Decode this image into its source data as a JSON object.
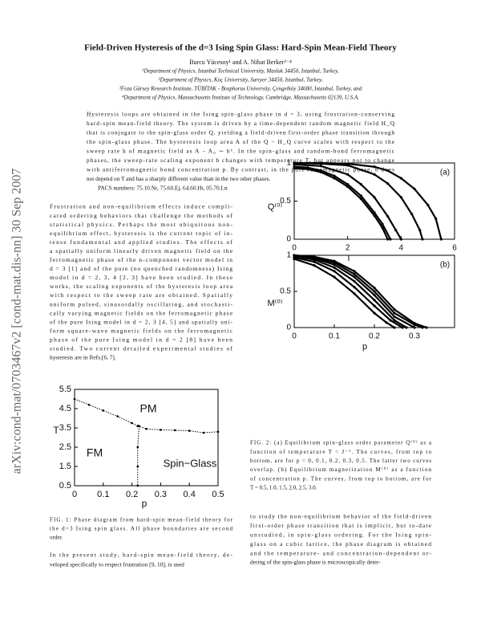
{
  "sidebar": "arXiv:cond-mat/0703467v2  [cond-mat.dis-nn]  30 Sep 2007",
  "header": {
    "title": "Field-Driven Hysteresis of the d=3 Ising Spin Glass: Hard-Spin Mean-Field Theory",
    "authors": "Burcu Yücesoy¹ and A. Nihat Berker²⁻⁴",
    "affiliations": [
      "¹Department of Physics, Istanbul Technical University, Maslak 34450, Istanbul, Turkey,",
      "²Department of Physics, Koç University, Sarıyer 34450, Istanbul, Turkey,",
      "³Feza Gürsey Research Institute, TÜBİTAK - Bosphorus University, Çengelköy 34680, Istanbul, Turkey, and",
      "⁴Department of Physics, Massachusetts Institute of Technology, Cambridge, Massachusetts 02139, U.S.A."
    ]
  },
  "abstract": {
    "lines": [
      "Hysteresis loops are obtained in the Ising spin-glass phase in d = 3, using frustration-conserving",
      "hard-spin mean-field theory. The system is driven by a time-dependent random magnetic field H_Q",
      "that is conjugate to the spin-glass order Q, yielding a field-driven first-order phase transition through",
      "the spin-glass phase.  The hysteresis loop area A of the Q − H_Q curve scales with respect to the",
      "sweep rate h of magnetic field as A − A₀ ∼ hᵇ.  In the spin-glass and random-bond ferromagnetic",
      "phases, the sweep-rate scaling exponent b changes with temperature T, but appears not to change",
      "with antiferromagnetic bond concentration p.  By contrast, in the pure ferromagnetic phase, b does",
      "not depend on T and has a sharply different value than in the two other phases."
    ],
    "pacs": "PACS numbers: 75.10.Nr, 75.60.Ej, 64.60.Ht, 05.70.Ln"
  },
  "body": {
    "left_top": [
      "Frustration and non-equilibrium effects induce compli-",
      "cated ordering behaviors that challenge the methods of",
      "statistical physics.  Perhaps the most ubiquitous non-",
      "equilibrium effect, hysteresis is the current topic of in-",
      "tense fundamental and applied studies.  The effects of",
      "a spatially uniform linearly driven magnetic field on the",
      "ferromagnetic phase of the n-component vector model in",
      "d = 3 [1] and of the pure (no quenched randomness) Ising",
      "model in d = 2, 3, 4 [2, 3] have been studied.  In these",
      "works, the scaling exponents of the hysteresis loop area",
      "with respect to the sweep rate are obtained.  Spatially",
      "uniform pulsed, sinusoidally oscillating, and stochasti-",
      "cally varying magnetic fields on the ferromagnetic phase",
      "of the pure Ising model in d = 2, 3 [4, 5] and spatially uni-",
      "form square-wave magnetic fields on the ferromagnetic",
      "phase of the pure Ising model in d = 2 [8] have been",
      "studied.  Two current detailed experimental studies of",
      "hysteresis are in Refs.[6, 7]."
    ],
    "left_bottom": [
      "In the present study, hard-spin mean-field theory, de-",
      "veloped specifically to respect frustration [9, 10], is used"
    ],
    "right_bottom": [
      "to study the non-equilibrium behavior of the field-driven",
      "first-order phase transition that is implicit, but to-date",
      "unstudied, in spin-glass ordering.  For the Ising spin-",
      "glass on a cubic lattice, the phase diagram is obtained",
      "and the temperature- and concentration-dependent or-",
      "dering of the spin-glass phase is microscopically deter-"
    ]
  },
  "captions": {
    "fig1": [
      "FIG. 1: Phase diagram from hard-spin mean-field theory for",
      "the d=3 Ising spin glass.  All phase boundaries are second",
      "order."
    ],
    "fig2": [
      "FIG. 2: (a) Equilibrium spin-glass order parameter Q⁽⁰⁾ as a",
      "function of temperature T = J⁻¹.  The curves, from top to",
      "bottom, are for p = 0, 0.1, 0.2, 0.3, 0.5.  The latter two curves",
      "overlap.  (b) Equilibrium magnetization M⁽⁰⁾ as a function",
      "of concentration p.  The curves, from top to bottom, are for",
      "T = 0.5, 1.0, 1.5, 2.0, 2.5, 3.0."
    ]
  },
  "figures": [
    {
      "xlabel": "p",
      "ylabel": "T",
      "xlim": [
        0,
        0.5
      ],
      "ylim": [
        0.5,
        5.5
      ],
      "xticks": [
        0,
        0.1,
        0.2,
        0.3,
        0.4,
        0.5
      ],
      "yticks": [
        0.5,
        1.5,
        2.5,
        3.5,
        4.5,
        5.5
      ],
      "annotations": [
        "PM",
        "FM",
        "Spin−Glass"
      ],
      "series": [
        {
          "x": [
            0,
            0.05,
            0.1,
            0.15,
            0.2,
            0.22
          ],
          "values": [
            5.0,
            4.7,
            4.4,
            4.1,
            3.75,
            3.6
          ]
        },
        {
          "x": [
            0.22,
            0.25,
            0.3,
            0.35,
            0.4,
            0.45,
            0.5
          ],
          "values": [
            3.6,
            3.45,
            3.4,
            3.38,
            3.35,
            3.25,
            3.3
          ]
        },
        {
          "x": [
            0.225,
            0.22,
            0.22,
            0.22
          ],
          "values": [
            3.6,
            2.5,
            1.5,
            0.5
          ]
        }
      ]
    },
    {
      "xlabel": "T",
      "ylabel": "Q⁽⁰⁾",
      "xlim": [
        0,
        6
      ],
      "ylim": [
        0,
        1
      ],
      "xticks": [
        0,
        2,
        4,
        6
      ],
      "yticks": [
        0,
        0.5,
        1
      ],
      "annotations": [
        "(a)"
      ],
      "series": [
        {
          "x": [
            0,
            1,
            2,
            3,
            3.5,
            4,
            4.5,
            5,
            5.3,
            5.5
          ],
          "values": [
            1,
            1,
            0.99,
            0.95,
            0.9,
            0.8,
            0.66,
            0.45,
            0.27,
            0
          ]
        },
        {
          "x": [
            0,
            1,
            2,
            3,
            3.5,
            4,
            4.4,
            4.7,
            4.8
          ],
          "values": [
            1,
            0.99,
            0.97,
            0.85,
            0.73,
            0.55,
            0.33,
            0.12,
            0
          ]
        },
        {
          "x": [
            0,
            1,
            2,
            2.5,
            3,
            3.5,
            3.8,
            4.0
          ],
          "values": [
            0.98,
            0.96,
            0.85,
            0.72,
            0.55,
            0.3,
            0.12,
            0
          ]
        },
        {
          "x": [
            0,
            0.5,
            1,
            1.5,
            2,
            2.5,
            3,
            3.3,
            3.6
          ],
          "values": [
            0.95,
            0.94,
            0.9,
            0.83,
            0.72,
            0.57,
            0.35,
            0.2,
            0
          ]
        },
        {
          "x": [
            0,
            0.5,
            1,
            1.5,
            2,
            2.5,
            3,
            3.3,
            3.5
          ],
          "values": [
            0.93,
            0.92,
            0.88,
            0.8,
            0.69,
            0.53,
            0.31,
            0.15,
            0
          ]
        }
      ]
    },
    {
      "xlabel": "p",
      "ylabel": "M⁽⁰⁾",
      "xlim": [
        0,
        0.4
      ],
      "ylim": [
        0,
        1
      ],
      "xticks": [
        0,
        0.1,
        0.2,
        0.3
      ],
      "yticks": [
        0,
        0.5,
        1
      ],
      "annotations": [
        "(b)"
      ],
      "series": [
        {
          "x": [
            0,
            0.05,
            0.1,
            0.15,
            0.2,
            0.25,
            0.3,
            0.33
          ],
          "values": [
            1,
            0.98,
            0.92,
            0.78,
            0.55,
            0.25,
            0.06,
            0
          ]
        },
        {
          "x": [
            0,
            0.05,
            0.1,
            0.15,
            0.2,
            0.25,
            0.3,
            0.32
          ],
          "values": [
            1,
            0.97,
            0.9,
            0.74,
            0.5,
            0.2,
            0.04,
            0
          ]
        },
        {
          "x": [
            0,
            0.05,
            0.1,
            0.15,
            0.2,
            0.25,
            0.3
          ],
          "values": [
            1,
            0.96,
            0.87,
            0.7,
            0.45,
            0.15,
            0
          ]
        },
        {
          "x": [
            0,
            0.05,
            0.1,
            0.15,
            0.2,
            0.25,
            0.28
          ],
          "values": [
            0.99,
            0.94,
            0.83,
            0.64,
            0.38,
            0.1,
            0
          ]
        },
        {
          "x": [
            0,
            0.05,
            0.1,
            0.15,
            0.2,
            0.24,
            0.27
          ],
          "values": [
            0.97,
            0.91,
            0.78,
            0.56,
            0.3,
            0.1,
            0
          ]
        },
        {
          "x": [
            0,
            0.05,
            0.1,
            0.15,
            0.2,
            0.23,
            0.25
          ],
          "values": [
            0.95,
            0.86,
            0.7,
            0.47,
            0.2,
            0.07,
            0
          ]
        }
      ]
    }
  ]
}
